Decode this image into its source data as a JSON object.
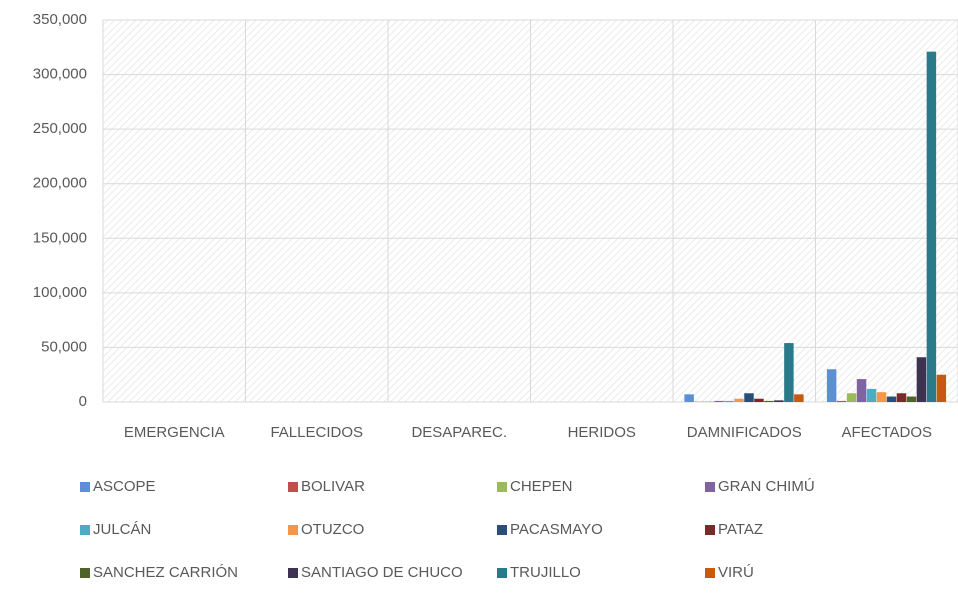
{
  "chart_data": {
    "type": "bar",
    "categories": [
      "EMERGENCIA",
      "FALLECIDOS",
      "DESAPAREC.",
      "HERIDOS",
      "DAMNIFICADOS",
      "AFECTADOS"
    ],
    "series": [
      {
        "name": "ASCOPE",
        "color": "#5b8fd6",
        "values": [
          0,
          0,
          0,
          0,
          7000,
          30000
        ]
      },
      {
        "name": "BOLIVAR",
        "color": "#c0504d",
        "values": [
          0,
          0,
          0,
          0,
          200,
          1000
        ]
      },
      {
        "name": "CHEPEN",
        "color": "#9bbb59",
        "values": [
          0,
          0,
          0,
          0,
          500,
          8000
        ]
      },
      {
        "name": "GRAN CHIMÚ",
        "color": "#8064a2",
        "values": [
          0,
          0,
          0,
          0,
          1000,
          21000
        ]
      },
      {
        "name": "JULCÁN",
        "color": "#4bacc6",
        "values": [
          0,
          0,
          0,
          0,
          1000,
          12000
        ]
      },
      {
        "name": "OTUZCO",
        "color": "#f79646",
        "values": [
          0,
          0,
          0,
          0,
          3000,
          9000
        ]
      },
      {
        "name": "PACASMAYO",
        "color": "#2c4d75",
        "values": [
          0,
          0,
          0,
          0,
          8000,
          5000
        ]
      },
      {
        "name": "PATAZ",
        "color": "#772c2a",
        "values": [
          0,
          0,
          0,
          0,
          3000,
          8000
        ]
      },
      {
        "name": "SANCHEZ CARRIÓN",
        "color": "#4f6228",
        "values": [
          0,
          0,
          0,
          0,
          1000,
          5000
        ]
      },
      {
        "name": "SANTIAGO DE CHUCO",
        "color": "#3f3151",
        "values": [
          0,
          0,
          0,
          0,
          1500,
          41000
        ]
      },
      {
        "name": "TRUJILLO",
        "color": "#2b7a8a",
        "values": [
          0,
          0,
          0,
          0,
          54000,
          321000
        ]
      },
      {
        "name": "VIRÚ",
        "color": "#c55a11",
        "values": [
          0,
          0,
          0,
          0,
          7000,
          25000
        ]
      }
    ],
    "ylim": [
      0,
      350000
    ],
    "yticks": [
      {
        "value": 0,
        "label": "0"
      },
      {
        "value": 50000,
        "label": "50,000"
      },
      {
        "value": 100000,
        "label": "100,000"
      },
      {
        "value": 150000,
        "label": "150,000"
      },
      {
        "value": 200000,
        "label": "200,000"
      },
      {
        "value": 250000,
        "label": "250,000"
      },
      {
        "value": 300000,
        "label": "300,000"
      },
      {
        "value": 350000,
        "label": "350,000"
      }
    ],
    "grid": true
  }
}
